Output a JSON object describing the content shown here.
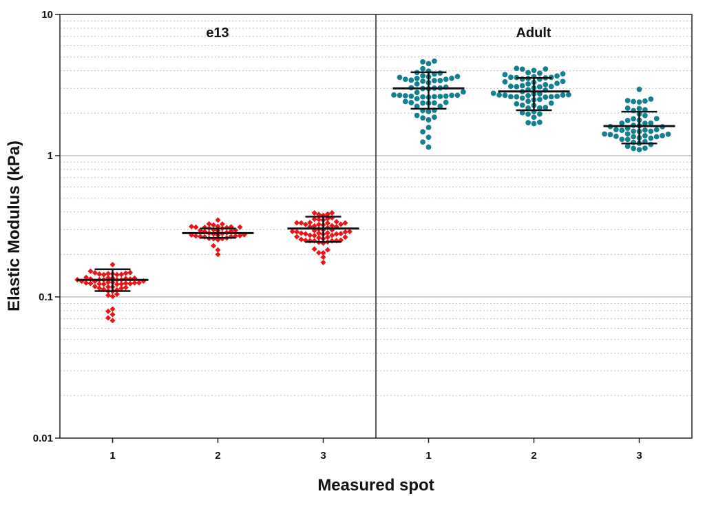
{
  "chart_data": {
    "type": "scatter",
    "subtype": "beeswarm-with-mean-sd",
    "yscale": "log",
    "ylabel": "Elastic Modulus (kPa)",
    "xlabel": "Measured spot",
    "ylim": [
      0.01,
      10
    ],
    "yticks": [
      {
        "value": 10,
        "label": "10"
      },
      {
        "value": 1,
        "label": "1"
      },
      {
        "value": 0.1,
        "label": "0.1"
      },
      {
        "value": 0.01,
        "label": "0.01"
      }
    ],
    "grid": "major solid, minor dotted",
    "colors": {
      "e13": "#e8161b",
      "Adult": "#14808f",
      "bars": "#111111"
    },
    "panels": [
      {
        "name": "e13",
        "title": "e13",
        "groups": [
          {
            "label": "1",
            "mean": 0.132,
            "sd_low": 0.11,
            "sd_high": 0.157,
            "n": 56,
            "median": 0.13,
            "spread": 0.09,
            "min": 0.068,
            "max": 0.17,
            "outliers": [
              0.068,
              0.071,
              0.075,
              0.079,
              0.082
            ]
          },
          {
            "label": "2",
            "mean": 0.283,
            "sd_low": 0.262,
            "sd_high": 0.305,
            "n": 40,
            "median": 0.285,
            "spread": 0.06,
            "min": 0.2,
            "max": 0.35,
            "outliers": [
              0.2,
              0.215,
              0.23,
              0.35
            ]
          },
          {
            "label": "3",
            "mean": 0.305,
            "sd_low": 0.245,
            "sd_high": 0.37,
            "n": 64,
            "median": 0.31,
            "spread": 0.2,
            "min": 0.17,
            "max": 0.4,
            "outliers": []
          }
        ]
      },
      {
        "name": "Adult",
        "title": "Adult",
        "groups": [
          {
            "label": "1",
            "mean": 3.0,
            "sd_low": 2.15,
            "sd_high": 3.9,
            "n": 62,
            "median": 3.0,
            "spread": 0.28,
            "min": 1.15,
            "max": 4.8,
            "outliers": [
              1.15,
              1.25,
              1.35
            ]
          },
          {
            "label": "2",
            "mean": 2.85,
            "sd_low": 2.1,
            "sd_high": 3.55,
            "n": 64,
            "median": 2.85,
            "spread": 0.22,
            "min": 1.6,
            "max": 4.2,
            "outliers": []
          },
          {
            "label": "3",
            "mean": 1.62,
            "sd_low": 1.22,
            "sd_high": 2.05,
            "n": 52,
            "median": 1.55,
            "spread": 0.22,
            "min": 1.1,
            "max": 2.95,
            "outliers": [
              2.95
            ]
          }
        ]
      }
    ]
  }
}
